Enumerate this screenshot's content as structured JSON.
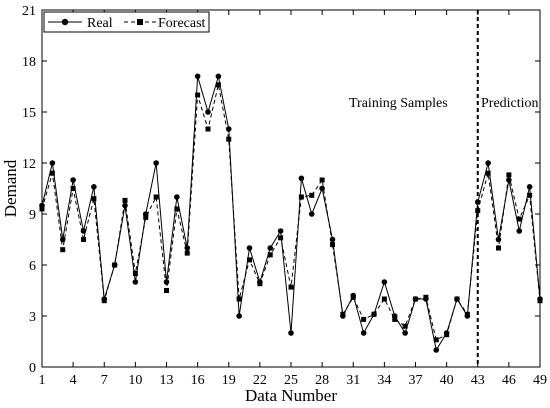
{
  "chart_data": {
    "type": "line",
    "xlabel": "Data Number",
    "ylabel": "Demand",
    "xlim": [
      1,
      49
    ],
    "ylim": [
      0,
      21
    ],
    "x_ticks": [
      1,
      4,
      7,
      10,
      13,
      16,
      19,
      22,
      25,
      28,
      31,
      34,
      37,
      40,
      43,
      46,
      49
    ],
    "y_ticks": [
      0,
      3,
      6,
      9,
      12,
      15,
      18,
      21
    ],
    "x": [
      1,
      2,
      3,
      4,
      5,
      6,
      7,
      8,
      9,
      10,
      11,
      12,
      13,
      14,
      15,
      16,
      17,
      18,
      19,
      20,
      21,
      22,
      23,
      24,
      25,
      26,
      27,
      28,
      29,
      30,
      31,
      32,
      33,
      34,
      35,
      36,
      37,
      38,
      39,
      40,
      41,
      42,
      43,
      44,
      45,
      46,
      47,
      48,
      49
    ],
    "series": [
      {
        "name": "Real",
        "marker": "circle",
        "line": "solid",
        "values": [
          9.5,
          12,
          7.5,
          11,
          8,
          10.6,
          4,
          6,
          9.5,
          5,
          9,
          12,
          5,
          10,
          7,
          17.1,
          15,
          17.1,
          14,
          3,
          7,
          5,
          7,
          8,
          2,
          11.1,
          9,
          10.5,
          7.5,
          3,
          4.2,
          2,
          3.1,
          5,
          3,
          2,
          4,
          4,
          1,
          2,
          4,
          3,
          9.7,
          12,
          7.5,
          11,
          8,
          10.6,
          4
        ]
      },
      {
        "name": "Forecast",
        "marker": "square",
        "line": "dashed",
        "values": [
          9.3,
          11.4,
          6.9,
          10.5,
          7.5,
          9.9,
          3.9,
          6,
          9.8,
          5.5,
          8.8,
          10,
          4.5,
          9.3,
          6.7,
          16,
          14,
          16.6,
          13.4,
          4,
          6.3,
          4.9,
          6.6,
          7.6,
          4.7,
          10,
          10.1,
          11,
          7.2,
          3.1,
          4.1,
          2.8,
          3.1,
          4,
          2.8,
          2.4,
          4,
          4.1,
          1.6,
          1.9,
          4,
          3.1,
          9.2,
          11.4,
          7,
          11.3,
          8.7,
          10.1,
          3.9
        ]
      }
    ],
    "vline": {
      "x": 43,
      "style": "dashed"
    },
    "annotations": {
      "training": "Training Samples",
      "prediction": "Prediction"
    },
    "legend_placement": "top-left",
    "grid": false
  }
}
